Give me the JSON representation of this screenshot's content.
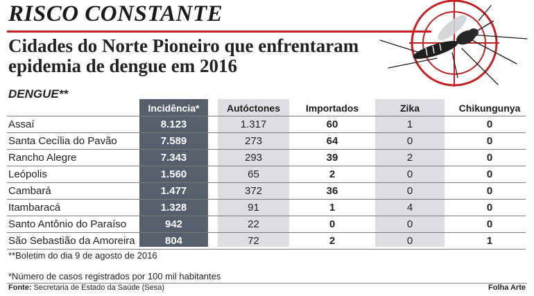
{
  "header": {
    "title": "RISCO CONSTANTE",
    "subtitle": "Cidades do Norte Pioneiro que enfrentaram epidemia de dengue em 2016"
  },
  "section_label": "DENGUE**",
  "table": {
    "columns": [
      "Incidência*",
      "Autóctones",
      "Importados",
      "Zika",
      "Chikungunya"
    ],
    "rows": [
      {
        "city": "Assaí",
        "incidencia": "8.123",
        "autoctones": "1.317",
        "importados": "60",
        "zika": "1",
        "chikungunya": "0"
      },
      {
        "city": "Santa Cecília do Pavão",
        "incidencia": "7.589",
        "autoctones": "273",
        "importados": "64",
        "zika": "0",
        "chikungunya": "0"
      },
      {
        "city": "Rancho Alegre",
        "incidencia": "7.343",
        "autoctones": "293",
        "importados": "39",
        "zika": "2",
        "chikungunya": "0"
      },
      {
        "city": "Leópolis",
        "incidencia": "1.560",
        "autoctones": "65",
        "importados": "2",
        "zika": "0",
        "chikungunya": "0"
      },
      {
        "city": "Cambará",
        "incidencia": "1.477",
        "autoctones": "372",
        "importados": "36",
        "zika": "0",
        "chikungunya": "0"
      },
      {
        "city": "Itambaracá",
        "incidencia": "1.328",
        "autoctones": "91",
        "importados": "1",
        "zika": "4",
        "chikungunya": "0"
      },
      {
        "city": "Santo Antônio do Paraíso",
        "incidencia": "942",
        "autoctones": "22",
        "importados": "0",
        "zika": "0",
        "chikungunya": "0"
      },
      {
        "city": "São Sebastião da Amoreira",
        "incidencia": "804",
        "autoctones": "72",
        "importados": "2",
        "zika": "0",
        "chikungunya": "1"
      }
    ]
  },
  "footnotes": {
    "boletim": "**Boletim do dia 9 de agosto de 2016",
    "incidencia": "*Número de casos registrados por 100 mil habitantes"
  },
  "source": {
    "label": "Fonte:",
    "text": "Secretaria de Estado da Saúde (Sesa)"
  },
  "credit": "Folha Arte",
  "colors": {
    "accent_red": "#c41e1e",
    "incidence_column": "#56606c",
    "shaded_column": "#dcdee1"
  },
  "icons": [
    "mosquito-target-icon"
  ]
}
